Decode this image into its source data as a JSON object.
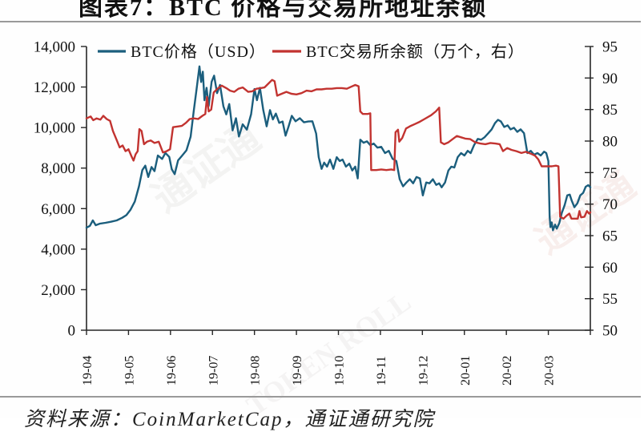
{
  "title": "图表7：BTC 价格与交易所地址余额",
  "source": "资料来源：CoinMarketCap，通证通研究院",
  "watermark": {
    "cn": "通证通",
    "en": "TOKEN ROLL"
  },
  "chart_data": {
    "type": "line",
    "title": "图表7：BTC 价格与交易所地址余额",
    "xlabel": "",
    "ylabel_left": "BTC价格（USD）",
    "ylabel_right": "BTC交易所余额（万个）",
    "grid": false,
    "legend_position": "top-inside",
    "legend": [
      {
        "label": "BTC价格（USD）",
        "color": "#1b5e7d",
        "axis": "left"
      },
      {
        "label": "BTC交易所余额（万个，右）",
        "color": "#c23330",
        "axis": "right"
      }
    ],
    "x_axis": {
      "unit": "year-month",
      "range_months": [
        0,
        12
      ],
      "tick_labels": [
        "19-04",
        "19-05",
        "19-06",
        "19-07",
        "19-08",
        "19-09",
        "19-10",
        "19-11",
        "19-12",
        "20-01",
        "20-02",
        "20-03"
      ]
    },
    "y_axis_left": {
      "min": 0,
      "max": 14000,
      "step": 2000,
      "tick_labels": [
        "0",
        "2,000",
        "4,000",
        "6,000",
        "8,000",
        "10,000",
        "12,000",
        "14,000"
      ]
    },
    "y_axis_right": {
      "min": 50,
      "max": 95,
      "step": 5,
      "tick_labels": [
        "50",
        "55",
        "60",
        "65",
        "70",
        "75",
        "80",
        "85",
        "90",
        "95"
      ]
    },
    "series": [
      {
        "name": "BTC价格（USD）",
        "slug": "btc-price-line",
        "axis": "left",
        "color": "#1b5e7d",
        "points": [
          [
            0.0,
            5060
          ],
          [
            0.08,
            5150
          ],
          [
            0.15,
            5420
          ],
          [
            0.22,
            5180
          ],
          [
            0.32,
            5260
          ],
          [
            0.45,
            5300
          ],
          [
            0.58,
            5350
          ],
          [
            0.72,
            5420
          ],
          [
            0.85,
            5550
          ],
          [
            0.95,
            5680
          ],
          [
            1.05,
            5950
          ],
          [
            1.15,
            6350
          ],
          [
            1.25,
            7100
          ],
          [
            1.33,
            7900
          ],
          [
            1.4,
            8120
          ],
          [
            1.47,
            7560
          ],
          [
            1.55,
            8050
          ],
          [
            1.62,
            7850
          ],
          [
            1.7,
            8620
          ],
          [
            1.8,
            8450
          ],
          [
            1.88,
            8750
          ],
          [
            1.97,
            8550
          ],
          [
            2.03,
            7950
          ],
          [
            2.1,
            7700
          ],
          [
            2.18,
            8380
          ],
          [
            2.28,
            8620
          ],
          [
            2.38,
            8880
          ],
          [
            2.48,
            9550
          ],
          [
            2.55,
            10760
          ],
          [
            2.62,
            11860
          ],
          [
            2.69,
            13020
          ],
          [
            2.73,
            12250
          ],
          [
            2.77,
            12760
          ],
          [
            2.81,
            11350
          ],
          [
            2.86,
            11960
          ],
          [
            2.91,
            11060
          ],
          [
            2.98,
            12260
          ],
          [
            3.04,
            12560
          ],
          [
            3.11,
            11700
          ],
          [
            3.18,
            12100
          ],
          [
            3.26,
            11050
          ],
          [
            3.33,
            10650
          ],
          [
            3.4,
            11160
          ],
          [
            3.48,
            9860
          ],
          [
            3.56,
            10460
          ],
          [
            3.63,
            9560
          ],
          [
            3.72,
            10160
          ],
          [
            3.82,
            9900
          ],
          [
            3.92,
            10660
          ],
          [
            4.0,
            11900
          ],
          [
            4.06,
            11350
          ],
          [
            4.13,
            11960
          ],
          [
            4.21,
            10860
          ],
          [
            4.29,
            10060
          ],
          [
            4.37,
            10860
          ],
          [
            4.44,
            10400
          ],
          [
            4.51,
            10690
          ],
          [
            4.59,
            10230
          ],
          [
            4.67,
            10300
          ],
          [
            4.74,
            9600
          ],
          [
            4.81,
            10030
          ],
          [
            4.89,
            10580
          ],
          [
            4.98,
            10310
          ],
          [
            5.08,
            10460
          ],
          [
            5.18,
            10260
          ],
          [
            5.28,
            10300
          ],
          [
            5.38,
            10310
          ],
          [
            5.47,
            9700
          ],
          [
            5.53,
            8540
          ],
          [
            5.6,
            7960
          ],
          [
            5.66,
            8270
          ],
          [
            5.73,
            8070
          ],
          [
            5.8,
            8420
          ],
          [
            5.88,
            7960
          ],
          [
            5.96,
            8540
          ],
          [
            6.03,
            8350
          ],
          [
            6.1,
            8420
          ],
          [
            6.18,
            8070
          ],
          [
            6.26,
            8220
          ],
          [
            6.33,
            7880
          ],
          [
            6.4,
            8070
          ],
          [
            6.46,
            7490
          ],
          [
            6.52,
            9400
          ],
          [
            6.6,
            9250
          ],
          [
            6.68,
            9320
          ],
          [
            6.76,
            9130
          ],
          [
            6.84,
            9210
          ],
          [
            6.93,
            9010
          ],
          [
            7.02,
            9050
          ],
          [
            7.11,
            8740
          ],
          [
            7.2,
            8850
          ],
          [
            7.29,
            8460
          ],
          [
            7.38,
            8350
          ],
          [
            7.46,
            7450
          ],
          [
            7.54,
            7100
          ],
          [
            7.62,
            7290
          ],
          [
            7.7,
            7450
          ],
          [
            7.78,
            7250
          ],
          [
            7.86,
            7560
          ],
          [
            7.94,
            7490
          ],
          [
            8.01,
            6650
          ],
          [
            8.09,
            7290
          ],
          [
            8.17,
            7250
          ],
          [
            8.25,
            7450
          ],
          [
            8.33,
            7170
          ],
          [
            8.4,
            7250
          ],
          [
            8.46,
            7050
          ],
          [
            8.54,
            7290
          ],
          [
            8.62,
            7880
          ],
          [
            8.69,
            8070
          ],
          [
            8.76,
            8030
          ],
          [
            8.84,
            8540
          ],
          [
            8.92,
            8740
          ],
          [
            9.0,
            8620
          ],
          [
            9.08,
            8850
          ],
          [
            9.15,
            8740
          ],
          [
            9.23,
            9130
          ],
          [
            9.32,
            9440
          ],
          [
            9.4,
            9400
          ],
          [
            9.48,
            9520
          ],
          [
            9.57,
            9720
          ],
          [
            9.65,
            9910
          ],
          [
            9.73,
            10220
          ],
          [
            9.8,
            10380
          ],
          [
            9.87,
            10300
          ],
          [
            9.95,
            10030
          ],
          [
            10.03,
            10110
          ],
          [
            10.1,
            9910
          ],
          [
            10.18,
            9990
          ],
          [
            10.26,
            9790
          ],
          [
            10.34,
            9910
          ],
          [
            10.42,
            9720
          ],
          [
            10.5,
            8740
          ],
          [
            10.58,
            8850
          ],
          [
            10.66,
            8660
          ],
          [
            10.74,
            8740
          ],
          [
            10.82,
            8620
          ],
          [
            10.9,
            8810
          ],
          [
            10.95,
            8740
          ],
          [
            11.0,
            8350
          ],
          [
            11.03,
            5600
          ],
          [
            11.05,
            5090
          ],
          [
            11.08,
            5320
          ],
          [
            11.11,
            4930
          ],
          [
            11.16,
            5210
          ],
          [
            11.2,
            5010
          ],
          [
            11.26,
            5280
          ],
          [
            11.32,
            5790
          ],
          [
            11.39,
            6180
          ],
          [
            11.45,
            6650
          ],
          [
            11.51,
            6690
          ],
          [
            11.56,
            6380
          ],
          [
            11.62,
            6070
          ],
          [
            11.69,
            6260
          ],
          [
            11.76,
            6650
          ],
          [
            11.83,
            6780
          ],
          [
            11.89,
            7080
          ],
          [
            11.95,
            7160
          ],
          [
            12.0,
            7050
          ]
        ]
      },
      {
        "name": "BTC交易所余额（万个，右）",
        "slug": "btc-exchange-balance-line",
        "axis": "right",
        "color": "#c23330",
        "points": [
          [
            0.0,
            83.6
          ],
          [
            0.1,
            83.9
          ],
          [
            0.16,
            83.3
          ],
          [
            0.24,
            83.6
          ],
          [
            0.33,
            83.4
          ],
          [
            0.4,
            84.0
          ],
          [
            0.48,
            83.5
          ],
          [
            0.56,
            83.2
          ],
          [
            0.63,
            81.6
          ],
          [
            0.71,
            80.3
          ],
          [
            0.79,
            79.0
          ],
          [
            0.86,
            79.3
          ],
          [
            0.93,
            78.4
          ],
          [
            1.0,
            78.7
          ],
          [
            1.07,
            77.6
          ],
          [
            1.12,
            76.9
          ],
          [
            1.17,
            77.9
          ],
          [
            1.22,
            78.4
          ],
          [
            1.26,
            81.9
          ],
          [
            1.31,
            81.6
          ],
          [
            1.37,
            79.5
          ],
          [
            1.44,
            79.9
          ],
          [
            1.53,
            80.1
          ],
          [
            1.62,
            79.7
          ],
          [
            1.72,
            79.9
          ],
          [
            1.82,
            78.2
          ],
          [
            1.91,
            78.4
          ],
          [
            1.99,
            78.7
          ],
          [
            2.06,
            82.2
          ],
          [
            2.16,
            82.3
          ],
          [
            2.27,
            82.4
          ],
          [
            2.37,
            82.9
          ],
          [
            2.46,
            83.5
          ],
          [
            2.56,
            83.6
          ],
          [
            2.66,
            83.5
          ],
          [
            2.76,
            84.0
          ],
          [
            2.83,
            84.3
          ],
          [
            2.87,
            87.0
          ],
          [
            2.91,
            84.7
          ],
          [
            2.97,
            85.0
          ],
          [
            3.03,
            87.7
          ],
          [
            3.12,
            88.3
          ],
          [
            3.22,
            88.8
          ],
          [
            3.33,
            88.4
          ],
          [
            3.42,
            88.0
          ],
          [
            3.52,
            87.8
          ],
          [
            3.62,
            88.3
          ],
          [
            3.72,
            88.5
          ],
          [
            3.85,
            87.8
          ],
          [
            3.95,
            87.9
          ],
          [
            4.05,
            88.3
          ],
          [
            4.15,
            88.4
          ],
          [
            4.24,
            88.5
          ],
          [
            4.33,
            89.1
          ],
          [
            4.42,
            89.7
          ],
          [
            4.48,
            89.5
          ],
          [
            4.54,
            87.2
          ],
          [
            4.65,
            87.5
          ],
          [
            4.76,
            87.8
          ],
          [
            4.88,
            87.5
          ],
          [
            5.0,
            87.4
          ],
          [
            5.12,
            87.6
          ],
          [
            5.24,
            88.0
          ],
          [
            5.36,
            87.9
          ],
          [
            5.48,
            88.2
          ],
          [
            5.6,
            88.2
          ],
          [
            5.72,
            88.3
          ],
          [
            5.84,
            88.3
          ],
          [
            5.96,
            88.4
          ],
          [
            6.08,
            88.4
          ],
          [
            6.2,
            88.3
          ],
          [
            6.3,
            88.6
          ],
          [
            6.4,
            88.9
          ],
          [
            6.48,
            88.7
          ],
          [
            6.52,
            84.7
          ],
          [
            6.58,
            84.3
          ],
          [
            6.7,
            84.3
          ],
          [
            6.76,
            84.4
          ],
          [
            6.78,
            75.4
          ],
          [
            6.9,
            75.4
          ],
          [
            7.02,
            75.5
          ],
          [
            7.14,
            75.4
          ],
          [
            7.26,
            75.5
          ],
          [
            7.33,
            75.4
          ],
          [
            7.36,
            81.4
          ],
          [
            7.42,
            81.8
          ],
          [
            7.45,
            79.9
          ],
          [
            7.52,
            80.5
          ],
          [
            7.61,
            82.0
          ],
          [
            7.72,
            82.4
          ],
          [
            7.82,
            82.7
          ],
          [
            7.92,
            83.0
          ],
          [
            8.05,
            83.5
          ],
          [
            8.21,
            84.1
          ],
          [
            8.32,
            84.7
          ],
          [
            8.4,
            85.3
          ],
          [
            8.44,
            79.8
          ],
          [
            8.52,
            79.5
          ],
          [
            8.62,
            79.8
          ],
          [
            8.72,
            80.3
          ],
          [
            8.82,
            80.8
          ],
          [
            8.92,
            80.6
          ],
          [
            9.02,
            80.4
          ],
          [
            9.14,
            80.3
          ],
          [
            9.26,
            79.8
          ],
          [
            9.38,
            79.6
          ],
          [
            9.5,
            79.5
          ],
          [
            9.62,
            79.7
          ],
          [
            9.74,
            79.6
          ],
          [
            9.84,
            79.5
          ],
          [
            9.92,
            78.4
          ],
          [
            10.02,
            78.9
          ],
          [
            10.12,
            78.6
          ],
          [
            10.24,
            78.4
          ],
          [
            10.36,
            78.1
          ],
          [
            10.46,
            78.3
          ],
          [
            10.58,
            78.0
          ],
          [
            10.68,
            77.7
          ],
          [
            10.76,
            77.1
          ],
          [
            10.84,
            76.0
          ],
          [
            10.95,
            76.0
          ],
          [
            11.08,
            76.0
          ],
          [
            11.18,
            76.1
          ],
          [
            11.24,
            76.0
          ],
          [
            11.28,
            68.0
          ],
          [
            11.36,
            67.7
          ],
          [
            11.44,
            68.2
          ],
          [
            11.5,
            68.5
          ],
          [
            11.55,
            67.7
          ],
          [
            11.62,
            67.7
          ],
          [
            11.7,
            67.7
          ],
          [
            11.74,
            68.9
          ],
          [
            11.78,
            67.9
          ],
          [
            11.86,
            68.0
          ],
          [
            11.92,
            68.9
          ],
          [
            11.97,
            68.5
          ],
          [
            12.0,
            68.7
          ]
        ]
      }
    ]
  }
}
